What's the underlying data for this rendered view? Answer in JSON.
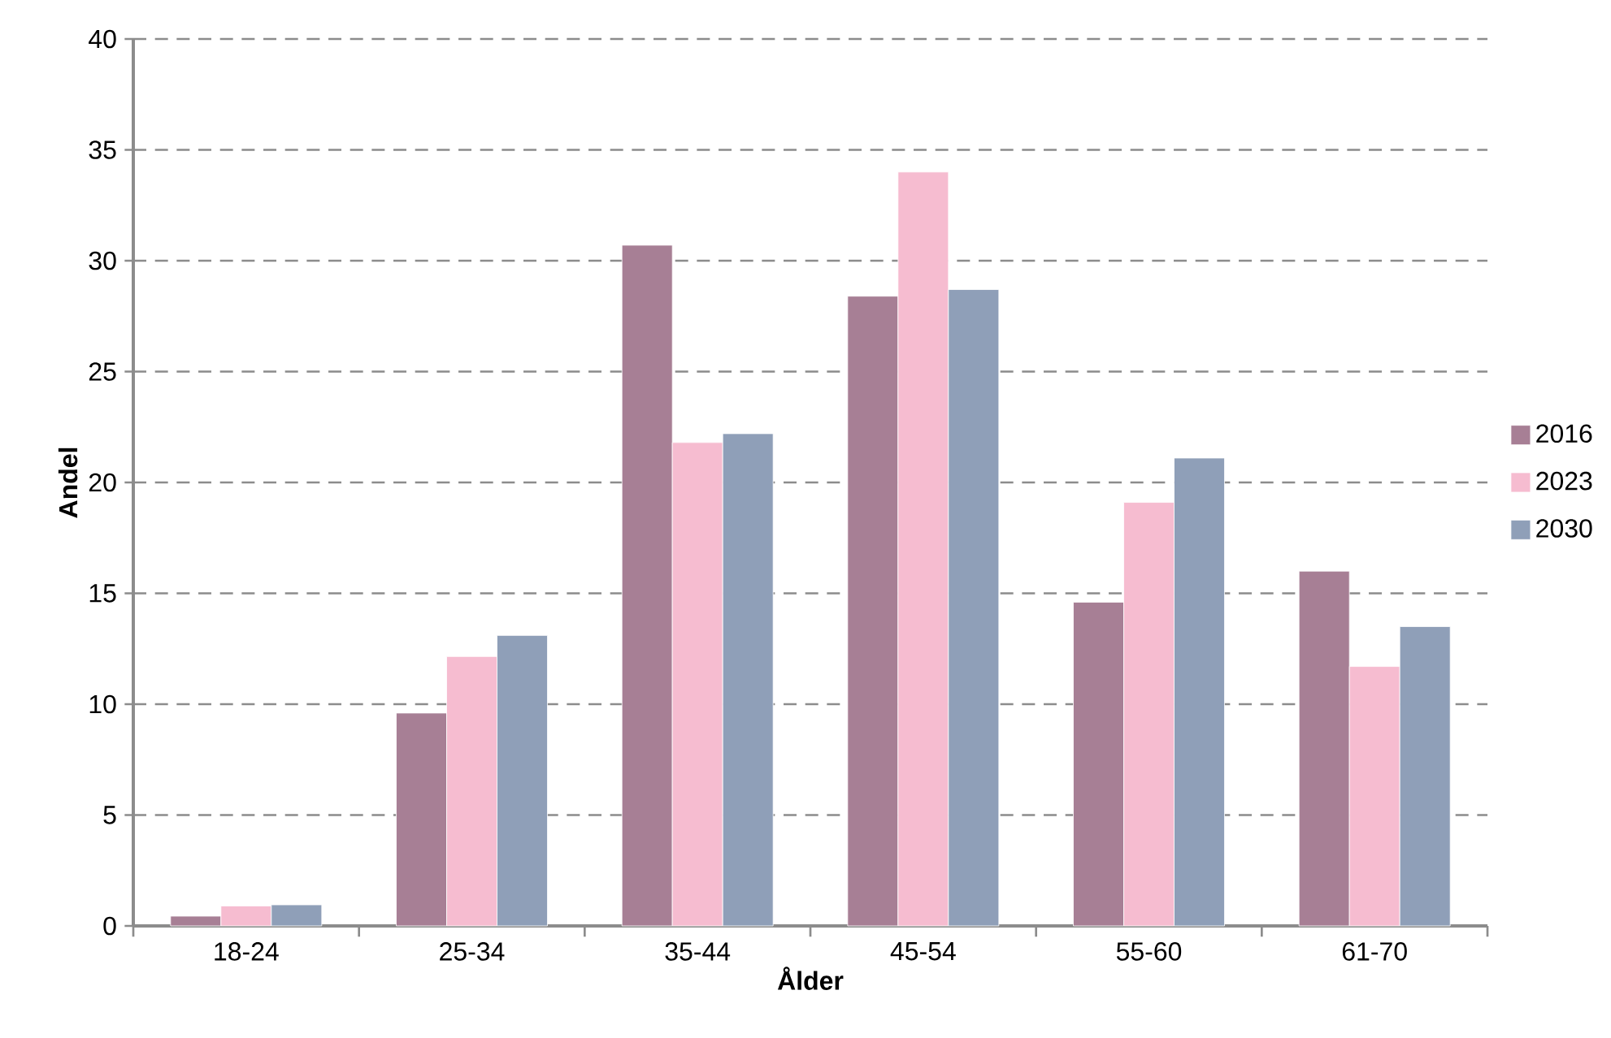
{
  "chart_data": {
    "type": "bar",
    "xlabel": "Ålder",
    "ylabel": "Andel",
    "categories": [
      "18-24",
      "25-34",
      "35-44",
      "45-54",
      "55-60",
      "61-70"
    ],
    "series": [
      {
        "name": "2016",
        "color": "#a77f95",
        "values": [
          0.44,
          9.6,
          30.7,
          28.4,
          14.6,
          16.0
        ]
      },
      {
        "name": "2023",
        "color": "#f6bcd0",
        "values": [
          0.9,
          12.15,
          21.8,
          34.0,
          19.1,
          11.7
        ]
      },
      {
        "name": "2030",
        "color": "#8f9fb8",
        "values": [
          0.95,
          13.1,
          22.2,
          28.7,
          21.1,
          13.5
        ]
      }
    ],
    "ylim": [
      0,
      40
    ],
    "yticks": [
      0,
      5,
      10,
      15,
      20,
      25,
      30,
      35,
      40
    ],
    "grid": "y",
    "legend": "right"
  }
}
